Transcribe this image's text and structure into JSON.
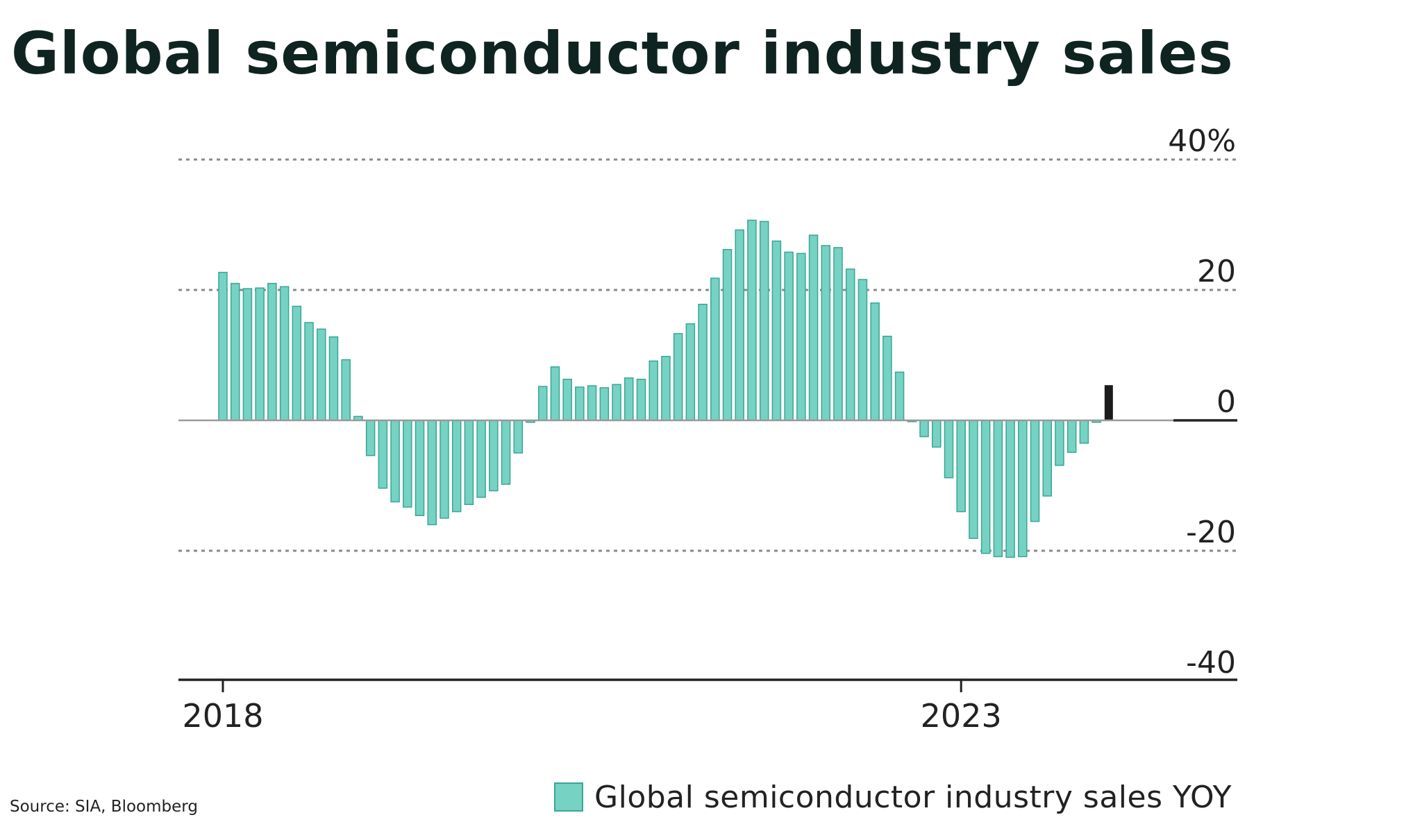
{
  "title": "Global semiconductor industry sales",
  "source": "Source: SIA, Bloomberg",
  "colors": {
    "bar_fill": "#76d2c3",
    "bar_stroke": "#3aa595",
    "latest_bar": "#1c1c1c",
    "grid": "#8a8a8a",
    "axis": "#222222",
    "text": "#222222"
  },
  "chart_data": {
    "type": "bar",
    "x_tick_labels": [
      "2018",
      "2023"
    ],
    "y_tick_labels": [
      "40%",
      "20",
      "0",
      "-20",
      "-40"
    ],
    "ylim": [
      -40,
      40
    ],
    "gridlines": [
      40,
      20,
      -20
    ],
    "legend": {
      "label": "Global semiconductor industry sales YOY",
      "placement": "bottom-right"
    },
    "series": [
      {
        "values": [
          22.7,
          21.0,
          20.2,
          20.3,
          21.0,
          20.5,
          17.5,
          15.0,
          14.0,
          12.8,
          9.3,
          0.6,
          -5.4,
          -10.4,
          -12.5,
          -13.3,
          -14.6,
          -16.0,
          -15.0,
          -14.0,
          -12.9,
          -11.8,
          -10.8,
          -9.8,
          -5.0,
          -0.3,
          5.2,
          8.2,
          6.3,
          5.1,
          5.3,
          5.0,
          5.5,
          6.5,
          6.3,
          9.1,
          9.8,
          13.3,
          14.8,
          17.8,
          21.8,
          26.2,
          29.2,
          30.7,
          30.5,
          27.5,
          25.8,
          25.6,
          28.4,
          26.8,
          26.5,
          23.2,
          21.6,
          18.0,
          12.9,
          7.4,
          -0.2,
          -2.5,
          -4.1,
          -8.8,
          -14.0,
          -18.1,
          -20.4,
          -20.9,
          -21.0,
          -20.9,
          -15.5,
          -11.6,
          -6.9,
          -4.9,
          -3.5,
          -0.3
        ],
        "latest_value": 5.4
      }
    ]
  }
}
